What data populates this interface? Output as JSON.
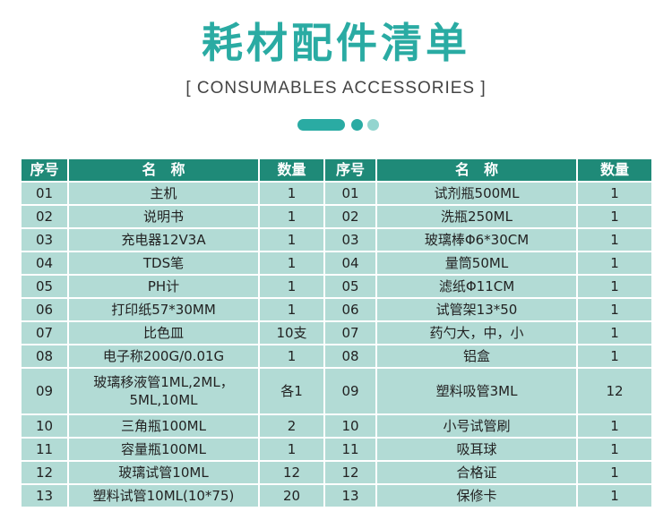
{
  "title": "耗材配件清单",
  "subtitle": "[ CONSUMABLES ACCESSORIES ]",
  "colors": {
    "accent": "#2aaba3",
    "header_bg": "#1f8a78",
    "row_bg": "#b2dbd5",
    "dot_light": "#93d5cf"
  },
  "table": {
    "headers": [
      "序号",
      "名　称",
      "数量",
      "序号",
      "名　称",
      "数量"
    ],
    "rows": [
      [
        "01",
        "主机",
        "1",
        "01",
        "试剂瓶500ML",
        "1"
      ],
      [
        "02",
        "说明书",
        "1",
        "02",
        "洗瓶250ML",
        "1"
      ],
      [
        "03",
        "充电器12V3A",
        "1",
        "03",
        "玻璃棒Φ6*30CM",
        "1"
      ],
      [
        "04",
        "TDS笔",
        "1",
        "04",
        "量筒50ML",
        "1"
      ],
      [
        "05",
        "PH计",
        "1",
        "05",
        "滤纸Φ11CM",
        "1"
      ],
      [
        "06",
        "打印纸57*30MM",
        "1",
        "06",
        "试管架13*50",
        "1"
      ],
      [
        "07",
        "比色皿",
        "10支",
        "07",
        "药勺大，中，小",
        "1"
      ],
      [
        "08",
        "电子称200G/0.01G",
        "1",
        "08",
        "铝盒",
        "1"
      ],
      [
        "09",
        "玻璃移液管1ML,2ML，5ML,10ML",
        "各1",
        "09",
        "塑料吸管3ML",
        "12"
      ],
      [
        "10",
        "三角瓶100ML",
        "2",
        "10",
        "小号试管刷",
        "1"
      ],
      [
        "11",
        "容量瓶100ML",
        "1",
        "11",
        "吸耳球",
        "1"
      ],
      [
        "12",
        "玻璃试管10ML",
        "12",
        "12",
        "合格证",
        "1"
      ],
      [
        "13",
        "塑料试管10ML(10*75)",
        "20",
        "13",
        "保修卡",
        "1"
      ]
    ]
  }
}
